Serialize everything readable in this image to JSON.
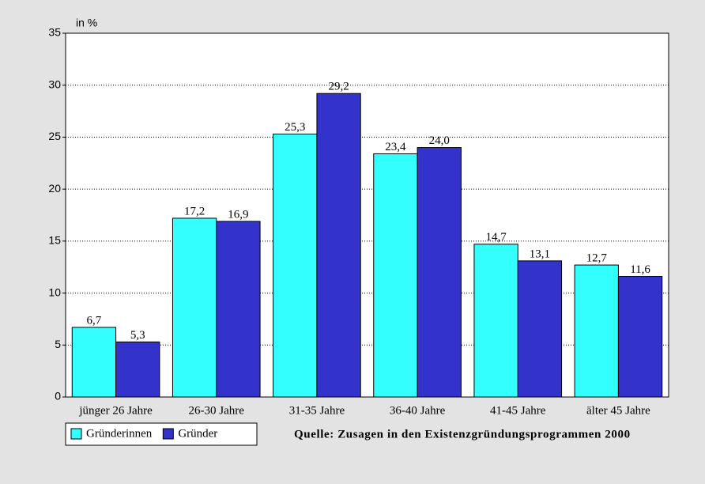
{
  "chart_data": {
    "type": "bar",
    "y_label": "in %",
    "categories": [
      "jünger 26 Jahre",
      "26-30 Jahre",
      "31-35 Jahre",
      "36-40 Jahre",
      "41-45 Jahre",
      "älter 45 Jahre"
    ],
    "series": [
      {
        "name": "Gründerinnen",
        "color": "#33ffff",
        "values": [
          6.7,
          17.2,
          25.3,
          23.4,
          14.7,
          12.7
        ],
        "value_labels": [
          "6,7",
          "17,2",
          "25,3",
          "23,4",
          "14,7",
          "12,7"
        ]
      },
      {
        "name": "Gründer",
        "color": "#3333cc",
        "values": [
          5.3,
          16.9,
          29.2,
          24.0,
          13.1,
          11.6
        ],
        "value_labels": [
          "5,3",
          "16,9",
          "29,2",
          "24,0",
          "13,1",
          "11,6"
        ]
      }
    ],
    "ylim": [
      0,
      35
    ],
    "yticks": [
      0,
      5,
      10,
      15,
      20,
      25,
      30,
      35
    ],
    "grid": true,
    "source": "Quelle: Zusagen in den Existenzgründungsprogrammen 2000"
  }
}
